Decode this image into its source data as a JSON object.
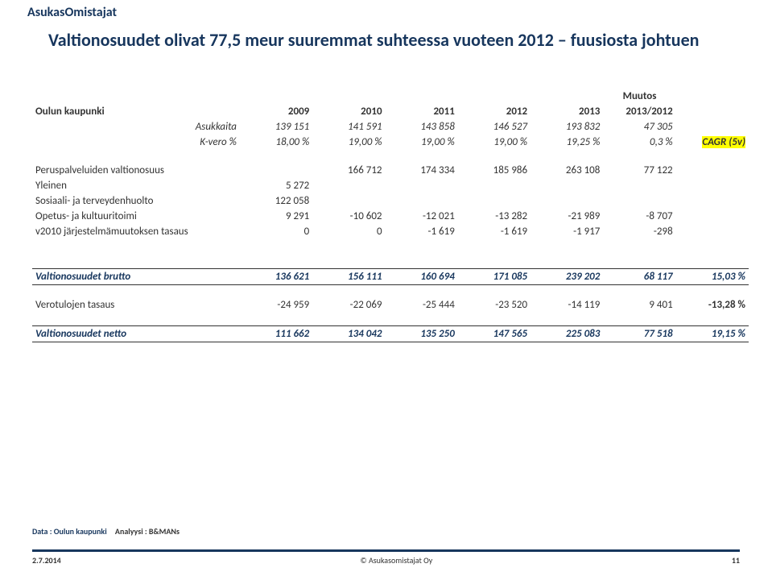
{
  "logo": {
    "part1": "Asukas",
    "part2": "Omistajat"
  },
  "title": "Valtionosuudet olivat 77,5 meur suuremmat suhteessa vuoteen 2012 – fuusiosta johtuen",
  "header": {
    "muutos": "Muutos",
    "city": "Oulun kaupunki",
    "years": [
      "2009",
      "2010",
      "2011",
      "2012",
      "2013",
      "2013/2012"
    ],
    "asukkaita_label": "Asukkaita",
    "asukkaita": [
      "139 151",
      "141 591",
      "143 858",
      "146 527",
      "193 832",
      "47 305"
    ],
    "kvero_label": "K-vero %",
    "kvero": [
      "18,00 %",
      "19,00 %",
      "19,00 %",
      "19,00 %",
      "19,25 %",
      "0,3 %"
    ],
    "cagr": "CAGR (5v)"
  },
  "rows": {
    "r1": {
      "label": "Peruspalveluiden valtionosuus",
      "c": [
        "",
        "166 712",
        "174 334",
        "185 986",
        "263 108",
        "77 122",
        ""
      ]
    },
    "r2": {
      "label": "Yleinen",
      "c": [
        "5 272",
        "",
        "",
        "",
        "",
        "",
        ""
      ]
    },
    "r3": {
      "label": "Sosiaali- ja terveydenhuolto",
      "c": [
        "122 058",
        "",
        "",
        "",
        "",
        "",
        ""
      ]
    },
    "r4": {
      "label": "Opetus- ja kultuuritoimi",
      "c": [
        "9 291",
        "-10 602",
        "-12 021",
        "-13 282",
        "-21 989",
        "-8 707",
        ""
      ]
    },
    "r5": {
      "label": "v2010 järjestelmämuutoksen tasaus",
      "c": [
        "0",
        "0",
        "-1 619",
        "-1 619",
        "-1 917",
        "-298",
        ""
      ]
    }
  },
  "totals": {
    "brutto": {
      "label": "Valtionosuudet brutto",
      "c": [
        "136 621",
        "156 111",
        "160 694",
        "171 085",
        "239 202",
        "68 117",
        "15,03 %"
      ]
    },
    "verotulo": {
      "label": "Verotulojen tasaus",
      "c": [
        "-24 959",
        "-22 069",
        "-25 444",
        "-23 520",
        "-14 119",
        "9 401",
        "-13,28 %"
      ]
    },
    "netto": {
      "label": "Valtionosuudet netto",
      "c": [
        "111 662",
        "134 042",
        "135 250",
        "147 565",
        "225 083",
        "77 518",
        "19,15 %"
      ]
    }
  },
  "source": {
    "s1": "Data : Oulun kaupunki",
    "s2": "Analyysi : B&MANs"
  },
  "footer": {
    "date": "2.7.2014",
    "copy": "© Asukasomistajat Oy",
    "page": "11"
  }
}
